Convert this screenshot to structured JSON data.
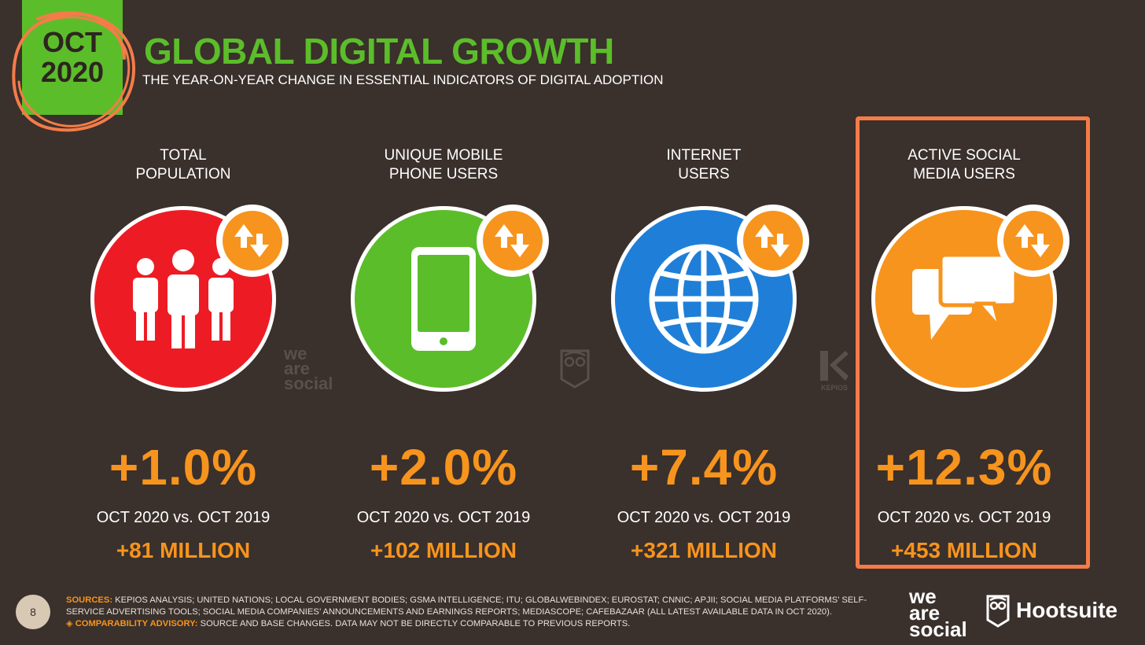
{
  "header": {
    "badge_month": "OCT",
    "badge_year": "2020",
    "title": "GLOBAL DIGITAL GROWTH",
    "subtitle": "THE YEAR-ON-YEAR CHANGE IN ESSENTIAL INDICATORS OF DIGITAL ADOPTION"
  },
  "columns": [
    {
      "label_line1": "TOTAL",
      "label_line2": "POPULATION",
      "icon": "people-icon",
      "color": "#ed1c24",
      "percent": "+1.0%",
      "comparison": "OCT 2020 vs. OCT 2019",
      "delta": "+81 MILLION"
    },
    {
      "label_line1": "UNIQUE MOBILE",
      "label_line2": "PHONE USERS",
      "icon": "mobile-phone-icon",
      "color": "#5bbd2a",
      "percent": "+2.0%",
      "comparison": "OCT 2020 vs. OCT 2019",
      "delta": "+102 MILLION"
    },
    {
      "label_line1": "INTERNET",
      "label_line2": "USERS",
      "icon": "globe-icon",
      "color": "#1f7fd8",
      "percent": "+7.4%",
      "comparison": "OCT 2020 vs. OCT 2019",
      "delta": "+321 MILLION"
    },
    {
      "label_line1": "ACTIVE SOCIAL",
      "label_line2": "MEDIA USERS",
      "icon": "chat-bubbles-icon",
      "color": "#f7941d",
      "percent": "+12.3%",
      "comparison": "OCT 2020 vs. OCT 2019",
      "delta": "+453 MILLION"
    }
  ],
  "watermarks": {
    "was_line1": "we",
    "was_line2": "are",
    "was_line3": "social",
    "kepios": "KEPIOS"
  },
  "footer": {
    "page_number": "8",
    "sources_label": "SOURCES:",
    "sources_text": "KEPIOS ANALYSIS; UNITED NATIONS; LOCAL GOVERNMENT BODIES; GSMA INTELLIGENCE; ITU; GLOBALWEBINDEX; EUROSTAT; CNNIC; APJII; SOCIAL MEDIA PLATFORMS’ SELF-SERVICE ADVERTISING TOOLS; SOCIAL MEDIA COMPANIES’ ANNOUNCEMENTS AND EARNINGS REPORTS; MEDIASCOPE; CAFEBAZAAR (ALL LATEST AVAILABLE DATA IN OCT 2020).",
    "advisory_label": "◈ COMPARABILITY ADVISORY:",
    "advisory_text": "SOURCE AND BASE CHANGES. DATA MAY NOT BE DIRECTLY COMPARABLE TO PREVIOUS REPORTS.",
    "logo_was_line1": "we",
    "logo_was_line2": "are",
    "logo_was_line3": "social",
    "logo_hootsuite": "Hootsuite"
  }
}
